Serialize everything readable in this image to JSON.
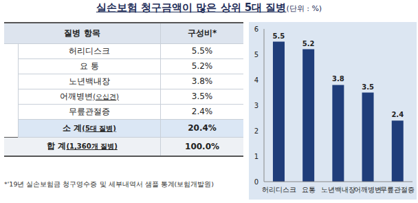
{
  "title": "실손보험 청구금액이 많은 상위 5대 질병",
  "unit": "(단위 : %)",
  "table": {
    "header": [
      "질병 항목",
      "구성비*"
    ],
    "rows": [
      {
        "label": "허리디스크",
        "value": "5.5%"
      },
      {
        "label": "요 통",
        "value": "5.2%"
      },
      {
        "label": "노년백내장",
        "value": "3.8%"
      },
      {
        "label": "어깨병변",
        "note": "(오십견)",
        "value": "3.5%"
      },
      {
        "label": "무릎관절증",
        "value": "2.4%"
      }
    ],
    "subtotal": {
      "label": "소 계",
      "note": "(5대 질병)",
      "value": "20.4%"
    },
    "total": {
      "label": "합 계",
      "note": "(1,360개 질병)",
      "value": "100.0%"
    }
  },
  "footnote": "*'19년 실손보험금 청구영수증 및 세부내역서 샘플 통계(보험개발원)",
  "chart_data": {
    "type": "bar",
    "categories": [
      "허리디스크",
      "요통",
      "노년백내장",
      "어깨병변",
      "무릎관절증"
    ],
    "values": [
      5.5,
      5.2,
      3.8,
      3.5,
      2.4
    ],
    "color": "#1f3d7a",
    "ylim": [
      0,
      6
    ],
    "yticks": [
      0,
      1,
      2,
      3,
      4,
      5,
      6
    ],
    "data_labels": true,
    "grid": false
  }
}
